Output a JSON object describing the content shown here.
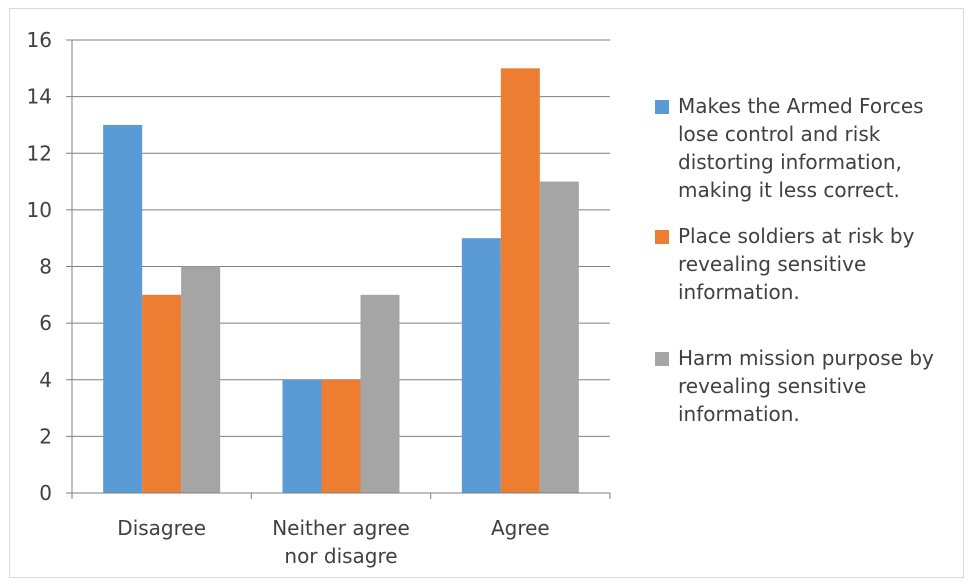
{
  "chart_data": {
    "type": "bar",
    "categories": [
      [
        "Disagree"
      ],
      [
        "Neither agree",
        "nor disagre"
      ],
      [
        "Agree"
      ]
    ],
    "series": [
      {
        "name": "Makes the Armed Forces lose control and risk distorting information, making it less correct.",
        "values": [
          13,
          4,
          9
        ],
        "color": "#5b9bd5"
      },
      {
        "name": "Place soldiers at risk by revealing sensitive information.",
        "values": [
          7,
          4,
          15
        ],
        "color": "#ed7d31"
      },
      {
        "name": "Harm mission purpose by revealing sensitive information.",
        "values": [
          8,
          7,
          11
        ],
        "color": "#a5a5a5"
      }
    ],
    "ylim": [
      0,
      16
    ],
    "yticks": [
      0,
      2,
      4,
      6,
      8,
      10,
      12,
      14,
      16
    ],
    "grid": true,
    "legend_position": "right"
  },
  "legend": {
    "items": [
      "Makes the Armed Forces lose control and risk distorting information, making it less correct.",
      "Place soldiers at risk by revealing sensitive information.",
      "Harm mission purpose by revealing sensitive information."
    ]
  }
}
